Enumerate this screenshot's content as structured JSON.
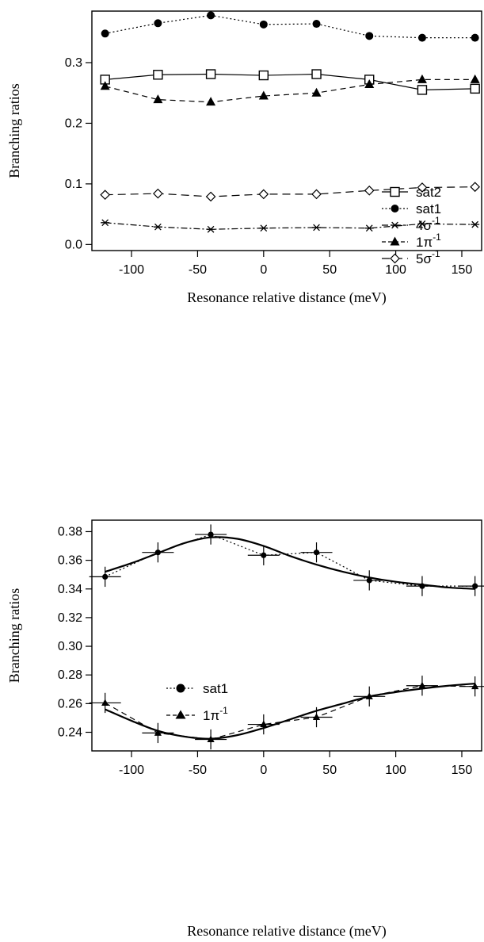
{
  "chart_data": [
    {
      "type": "line",
      "title": "",
      "xlabel": "Resonance relative distance (meV)",
      "ylabel": "Branching ratios",
      "xlim": [
        -130,
        165
      ],
      "ylim": [
        -0.01,
        0.385
      ],
      "xticks": [
        -100,
        -50,
        0,
        50,
        100,
        150
      ],
      "yticks": [
        0.0,
        0.1,
        0.2,
        0.3
      ],
      "ytick_labels": [
        "0.0",
        "0.1",
        "0.2",
        "0.3"
      ],
      "grid": false,
      "legend_position": "right",
      "x": [
        -120,
        -80,
        -40,
        0,
        40,
        80,
        120,
        160
      ],
      "series": [
        {
          "name": "sat2",
          "marker": "open-square",
          "line": "solid",
          "values": [
            0.272,
            0.28,
            0.281,
            0.279,
            0.281,
            0.272,
            0.255,
            0.257
          ]
        },
        {
          "name": "sat1",
          "marker": "filled-circle",
          "line": "dotted",
          "values": [
            0.348,
            0.365,
            0.378,
            0.363,
            0.364,
            0.344,
            0.341,
            0.341
          ]
        },
        {
          "name": "4σ",
          "superscript": "-1",
          "marker": "asterisk",
          "line": "dash-dot",
          "values": [
            0.036,
            0.029,
            0.025,
            0.027,
            0.028,
            0.027,
            0.034,
            0.033
          ]
        },
        {
          "name": "1π",
          "superscript": "-1",
          "marker": "filled-triangle",
          "line": "dashed",
          "values": [
            0.261,
            0.239,
            0.235,
            0.245,
            0.25,
            0.264,
            0.272,
            0.272
          ]
        },
        {
          "name": "5σ",
          "superscript": "-1",
          "marker": "open-diamond",
          "line": "dashed-long",
          "values": [
            0.082,
            0.084,
            0.079,
            0.083,
            0.083,
            0.089,
            0.094,
            0.095
          ]
        }
      ]
    },
    {
      "type": "line",
      "title": "",
      "xlabel": "Resonance relative distance (meV)",
      "ylabel": "Branching ratios",
      "xlim": [
        -130,
        165
      ],
      "ylim": [
        0.227,
        0.388
      ],
      "xticks": [
        -100,
        -50,
        0,
        50,
        100,
        150
      ],
      "yticks": [
        0.24,
        0.26,
        0.28,
        0.3,
        0.32,
        0.34,
        0.36,
        0.38
      ],
      "ytick_labels": [
        "0.24",
        "0.26",
        "0.28",
        "0.30",
        "0.32",
        "0.34",
        "0.36",
        "0.38"
      ],
      "grid": false,
      "legend_position": "center-left",
      "x": [
        -120,
        -80,
        -40,
        0,
        40,
        80,
        120,
        160
      ],
      "error_y": 0.007,
      "error_x": 12,
      "series": [
        {
          "name": "sat1",
          "marker": "filled-circle",
          "line": "dotted",
          "values": [
            0.3485,
            0.3655,
            0.378,
            0.3635,
            0.3655,
            0.346,
            0.342,
            0.342
          ],
          "fit": {
            "x": [
              -120,
              -100,
              -80,
              -60,
              -40,
              -20,
              0,
              20,
              40,
              60,
              80,
              100,
              120,
              140,
              160
            ],
            "y": [
              0.352,
              0.358,
              0.365,
              0.372,
              0.376,
              0.375,
              0.37,
              0.363,
              0.357,
              0.352,
              0.348,
              0.345,
              0.343,
              0.341,
              0.34
            ]
          }
        },
        {
          "name": "1π",
          "superscript": "-1",
          "marker": "filled-triangle",
          "line": "dashed",
          "values": [
            0.2605,
            0.2395,
            0.235,
            0.2455,
            0.2505,
            0.265,
            0.2725,
            0.272
          ],
          "fit": {
            "x": [
              -120,
              -100,
              -80,
              -60,
              -40,
              -20,
              0,
              20,
              40,
              60,
              80,
              100,
              120,
              140,
              160
            ],
            "y": [
              0.256,
              0.248,
              0.241,
              0.237,
              0.2355,
              0.238,
              0.243,
              0.249,
              0.255,
              0.26,
              0.265,
              0.268,
              0.2705,
              0.2725,
              0.274
            ]
          }
        }
      ]
    }
  ]
}
